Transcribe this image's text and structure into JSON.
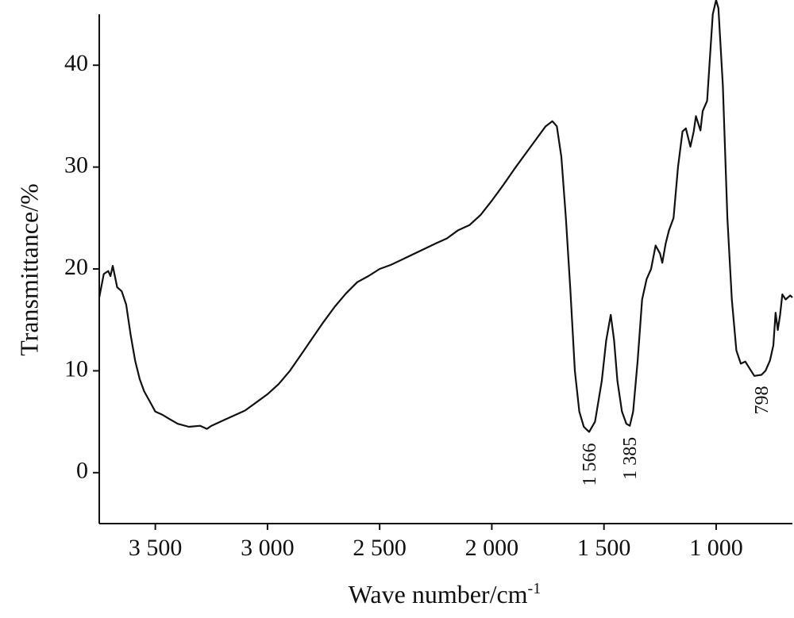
{
  "chart_data": {
    "type": "line",
    "x_label": {
      "text": "Wave number/cm",
      "superscript": "-1"
    },
    "y_label": "Transmittance/%",
    "xlim": [
      3750,
      660
    ],
    "ylim": [
      -5,
      45
    ],
    "xticks": [
      {
        "value": 3500,
        "label": "3 500"
      },
      {
        "value": 3000,
        "label": "3 000"
      },
      {
        "value": 2500,
        "label": "2 500"
      },
      {
        "value": 2000,
        "label": "2 000"
      },
      {
        "value": 1500,
        "label": "1 500"
      },
      {
        "value": 1000,
        "label": "1 000"
      }
    ],
    "yticks": [
      0,
      10,
      20,
      30,
      40
    ],
    "grid": false,
    "annotations": [
      {
        "value": 1566,
        "label": "1 566"
      },
      {
        "value": 1385,
        "label": "1 385"
      },
      {
        "value": 798,
        "label": "798"
      }
    ],
    "x": [
      3750,
      3730,
      3710,
      3700,
      3690,
      3670,
      3650,
      3630,
      3610,
      3590,
      3570,
      3550,
      3520,
      3500,
      3470,
      3440,
      3400,
      3350,
      3300,
      3270,
      3250,
      3200,
      3150,
      3100,
      3050,
      3000,
      2950,
      2900,
      2850,
      2800,
      2750,
      2700,
      2650,
      2600,
      2550,
      2500,
      2450,
      2250,
      2200,
      2150,
      2100,
      2050,
      2000,
      1950,
      1900,
      1850,
      1800,
      1760,
      1730,
      1710,
      1690,
      1670,
      1650,
      1630,
      1610,
      1590,
      1566,
      1540,
      1510,
      1490,
      1470,
      1455,
      1440,
      1420,
      1400,
      1385,
      1370,
      1350,
      1330,
      1310,
      1290,
      1270,
      1250,
      1240,
      1225,
      1210,
      1190,
      1170,
      1150,
      1135,
      1115,
      1100,
      1090,
      1070,
      1060,
      1040,
      1030,
      1015,
      1000,
      990,
      970,
      950,
      930,
      910,
      890,
      870,
      850,
      830,
      798,
      780,
      760,
      745,
      735,
      725,
      715,
      705,
      690,
      670,
      660
    ],
    "series": [
      {
        "color": "#111111",
        "values": [
          17.2,
          19.5,
          19.8,
          19.3,
          20.3,
          18.2,
          17.8,
          16.5,
          13.5,
          11,
          9.2,
          8,
          6.8,
          6,
          5.7,
          5.3,
          4.8,
          4.5,
          4.6,
          4.3,
          4.6,
          5.1,
          5.6,
          6.1,
          6.9,
          7.7,
          8.7,
          10,
          11.6,
          13.2,
          14.8,
          16.3,
          17.6,
          18.7,
          19.3,
          20,
          20.4,
          22.5,
          23,
          23.8,
          24.3,
          25.3,
          26.7,
          28.2,
          29.8,
          31.3,
          32.8,
          34,
          34.5,
          34,
          31,
          25,
          18,
          10,
          6,
          4.5,
          4,
          5,
          9,
          13,
          15.5,
          13,
          9,
          6,
          4.8,
          4.6,
          6,
          11,
          17,
          19,
          20,
          22.3,
          21.5,
          20.6,
          22.5,
          23.8,
          25,
          30,
          33.5,
          33.8,
          32,
          33.5,
          35,
          33.6,
          35.5,
          36.5,
          40,
          45,
          46.4,
          45.6,
          38,
          25,
          17,
          12,
          10.7,
          10.9,
          10.2,
          9.5,
          9.6,
          10,
          11,
          12.5,
          15.7,
          14,
          15.5,
          17.5,
          17,
          17.4,
          17.2
        ]
      }
    ]
  }
}
